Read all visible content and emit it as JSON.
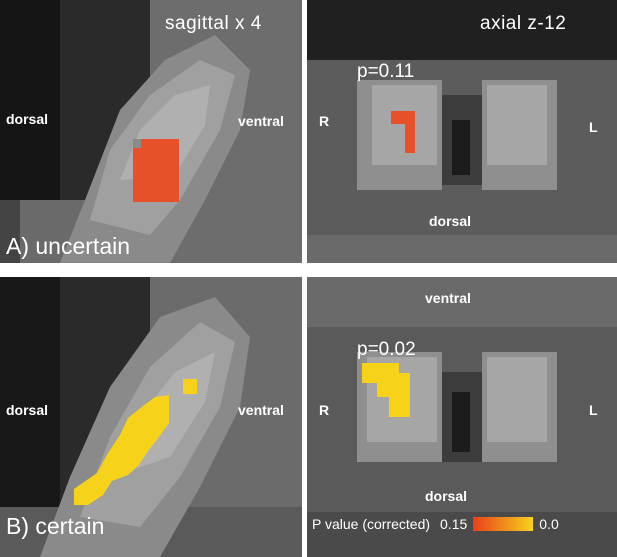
{
  "panels": {
    "top_left": {
      "view_label": "sagittal  x 4",
      "left_direction": "dorsal",
      "right_direction": "ventral",
      "condition_label": "A) uncertain"
    },
    "top_right": {
      "view_label": "axial  z-12",
      "p_value_label": "p=0.11",
      "left_direction": "R",
      "right_direction": "L",
      "bottom_direction": "dorsal"
    },
    "bottom_left": {
      "left_direction": "dorsal",
      "right_direction": "ventral",
      "condition_label": "B) certain"
    },
    "bottom_right": {
      "top_direction": "ventral",
      "p_value_label": "p=0.02",
      "left_direction": "R",
      "right_direction": "L",
      "bottom_direction": "dorsal"
    }
  },
  "legend": {
    "title": "P value (corrected)",
    "min_label": "0.15",
    "max_label": "0.0"
  },
  "colors": {
    "uncertain_overlay": "#e8502a",
    "certain_overlay": "#f7d21b",
    "background": "#1f1f1f"
  }
}
